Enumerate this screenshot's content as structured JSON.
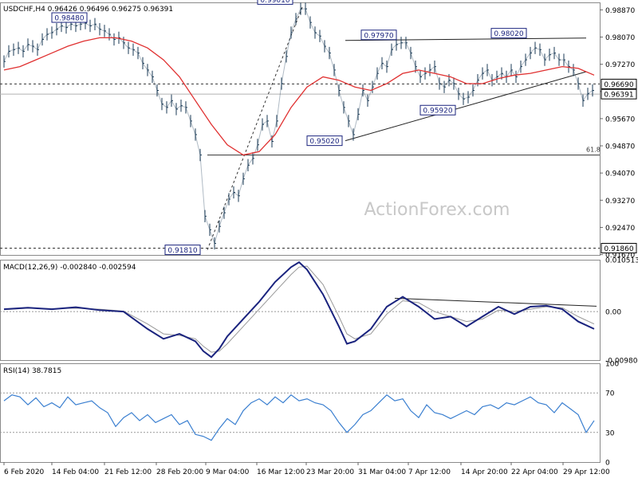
{
  "chart_data": {
    "type": "line",
    "symbol": "USDCHF,H4",
    "ohlc": {
      "open": "0.96426",
      "high": "0.96496",
      "low": "0.96275",
      "close": "0.96391"
    },
    "watermark": "ActionForex.com",
    "x_ticks": [
      "6 Feb 2020",
      "14 Feb 04:00",
      "21 Feb 12:00",
      "28 Feb 20:00",
      "9 Mar 04:00",
      "16 Mar 12:00",
      "23 Mar 20:00",
      "31 Mar 04:00",
      "7 Apr 12:00",
      "14 Apr 20:00",
      "22 Apr 04:00",
      "29 Apr 12:00"
    ],
    "price_panel": {
      "ylim": [
        0.9166,
        0.9909
      ],
      "y_ticks": [
        "0.98870",
        "0.98070",
        "0.97270",
        "0.96470",
        "0.95670",
        "0.94870",
        "0.94070",
        "0.93270",
        "0.92470",
        "0.91670"
      ],
      "current_price": "0.96391",
      "level_marker": "0.96690",
      "low_marker": "0.91860",
      "fib_label": "61.8",
      "fib_level": 0.946,
      "annotations": [
        {
          "label": "0.98480",
          "value": 0.9848
        },
        {
          "label": "0.99010",
          "value": 0.9901
        },
        {
          "label": "0.91810",
          "value": 0.9181
        },
        {
          "label": "0.95020",
          "value": 0.9502
        },
        {
          "label": "0.97970",
          "value": 0.9797
        },
        {
          "label": "0.95920",
          "value": 0.9592
        },
        {
          "label": "0.98020",
          "value": 0.9802
        }
      ],
      "series": [
        {
          "name": "close",
          "color": "#1a3a55",
          "x": [
            0,
            6,
            12,
            18,
            24,
            30,
            36,
            42,
            48,
            54,
            60,
            66,
            72,
            78,
            84,
            90,
            96,
            102,
            108,
            114,
            120,
            126,
            132,
            138,
            144,
            150,
            156,
            162,
            168,
            174,
            180,
            186,
            192,
            198,
            204,
            210,
            216,
            222,
            228,
            234,
            240,
            246,
            252,
            258,
            264,
            270,
            276,
            282,
            288,
            294,
            300,
            306,
            312,
            318,
            324,
            330,
            336,
            342,
            348,
            354,
            360,
            366,
            372,
            378,
            384,
            390,
            396,
            402,
            408,
            414,
            420,
            426,
            432,
            438,
            444,
            450,
            456,
            462,
            468,
            474,
            480,
            486,
            492,
            498,
            504,
            510,
            516,
            522,
            528,
            534,
            540,
            546,
            552,
            558,
            564,
            570,
            576,
            582,
            588,
            594,
            600,
            606,
            612,
            618,
            624,
            630,
            636,
            642,
            648,
            654,
            660,
            666,
            672,
            678,
            684,
            690,
            696,
            702,
            708,
            714,
            720,
            726,
            732,
            738
          ],
          "values": [
            0.9735,
            0.9765,
            0.977,
            0.9775,
            0.9765,
            0.9785,
            0.978,
            0.977,
            0.98,
            0.9815,
            0.982,
            0.983,
            0.984,
            0.9835,
            0.9845,
            0.984,
            0.9845,
            0.9848,
            0.984,
            0.9845,
            0.983,
            0.9825,
            0.9815,
            0.98,
            0.9805,
            0.979,
            0.9775,
            0.977,
            0.976,
            0.973,
            0.971,
            0.969,
            0.965,
            0.961,
            0.96,
            0.962,
            0.9595,
            0.9605,
            0.96,
            0.956,
            0.952,
            0.946,
            0.928,
            0.924,
            0.92,
            0.925,
            0.929,
            0.933,
            0.935,
            0.934,
            0.939,
            0.943,
            0.945,
            0.949,
            0.955,
            0.956,
            0.95,
            0.956,
            0.967,
            0.975,
            0.982,
            0.986,
            0.989,
            0.989,
            0.985,
            0.982,
            0.981,
            0.978,
            0.976,
            0.971,
            0.965,
            0.96,
            0.956,
            0.952,
            0.958,
            0.965,
            0.962,
            0.966,
            0.97,
            0.973,
            0.972,
            0.977,
            0.9785,
            0.979,
            0.979,
            0.976,
            0.972,
            0.969,
            0.97,
            0.971,
            0.972,
            0.967,
            0.966,
            0.968,
            0.967,
            0.964,
            0.9625,
            0.963,
            0.965,
            0.968,
            0.97,
            0.971,
            0.968,
            0.969,
            0.97,
            0.969,
            0.971,
            0.969,
            0.972,
            0.974,
            0.976,
            0.9775,
            0.977,
            0.974,
            0.9755,
            0.976,
            0.974,
            0.974,
            0.972,
            0.971,
            0.967,
            0.962,
            0.964,
            0.965
          ]
        },
        {
          "name": "MA",
          "color": "#e03030",
          "x": [
            0,
            20,
            40,
            60,
            80,
            100,
            120,
            140,
            160,
            180,
            200,
            220,
            240,
            260,
            280,
            300,
            320,
            340,
            360,
            380,
            400,
            420,
            440,
            460,
            480,
            500,
            520,
            540,
            560,
            580,
            600,
            620,
            640,
            660,
            680,
            700,
            720,
            740
          ],
          "values": [
            0.971,
            0.972,
            0.974,
            0.976,
            0.978,
            0.9795,
            0.9805,
            0.9805,
            0.9795,
            0.9775,
            0.974,
            0.969,
            0.962,
            0.955,
            0.949,
            0.946,
            0.947,
            0.952,
            0.96,
            0.966,
            0.969,
            0.968,
            0.966,
            0.965,
            0.967,
            0.97,
            0.971,
            0.97,
            0.969,
            0.967,
            0.967,
            0.9685,
            0.9695,
            0.97,
            0.971,
            0.972,
            0.9715,
            0.9695
          ]
        }
      ]
    },
    "macd_panel": {
      "label": "MACD(12,26,9) -0.002840 -0.002594",
      "ylim": [
        -0.0098,
        0.0105
      ],
      "y_ticks": [
        "0.010513",
        "0.00",
        "-0.009804"
      ],
      "zero_label": "0.00",
      "series": [
        {
          "name": "MACD",
          "color": "#1a237e",
          "x": [
            0,
            30,
            60,
            90,
            120,
            150,
            180,
            200,
            220,
            240,
            250,
            260,
            270,
            280,
            300,
            320,
            340,
            360,
            370,
            380,
            400,
            420,
            430,
            440,
            460,
            480,
            500,
            520,
            540,
            560,
            580,
            600,
            620,
            640,
            660,
            680,
            700,
            720,
            740
          ],
          "values": [
            0.0005,
            0.0008,
            0.0005,
            0.0009,
            0.0003,
            0.0,
            -0.0035,
            -0.0055,
            -0.0045,
            -0.006,
            -0.008,
            -0.0092,
            -0.0075,
            -0.005,
            -0.0015,
            0.002,
            0.006,
            0.009,
            0.01,
            0.0085,
            0.0035,
            -0.003,
            -0.0065,
            -0.006,
            -0.0035,
            0.001,
            0.003,
            0.001,
            -0.0015,
            -0.001,
            -0.003,
            -0.001,
            0.001,
            -0.0005,
            0.001,
            0.0012,
            0.0005,
            -0.002,
            -0.0035
          ]
        },
        {
          "name": "Signal",
          "color": "#999999",
          "x": [
            0,
            30,
            60,
            90,
            120,
            150,
            180,
            200,
            220,
            240,
            250,
            260,
            270,
            280,
            300,
            320,
            340,
            360,
            370,
            380,
            400,
            420,
            430,
            440,
            460,
            480,
            500,
            520,
            540,
            560,
            580,
            600,
            620,
            640,
            660,
            680,
            700,
            720,
            740
          ],
          "values": [
            0.0004,
            0.0007,
            0.0006,
            0.0007,
            0.0005,
            0.0001,
            -0.0025,
            -0.0045,
            -0.0048,
            -0.0055,
            -0.007,
            -0.0082,
            -0.008,
            -0.0065,
            -0.003,
            0.0005,
            0.004,
            0.0075,
            0.009,
            0.0092,
            0.0055,
            -0.001,
            -0.0045,
            -0.0055,
            -0.0045,
            -0.0005,
            0.0022,
            0.0018,
            0.0,
            -0.001,
            -0.002,
            -0.0015,
            0.0003,
            0.0,
            0.0005,
            0.001,
            0.0008,
            -0.001,
            -0.0025
          ]
        }
      ]
    },
    "rsi_panel": {
      "label": "RSI(14) 38.7815",
      "ylim": [
        0,
        100
      ],
      "y_ticks": [
        "100",
        "70",
        "30",
        "0"
      ],
      "series": [
        {
          "name": "RSI",
          "color": "#3a7fd0",
          "x": [
            0,
            10,
            20,
            30,
            40,
            50,
            60,
            70,
            80,
            90,
            100,
            110,
            120,
            130,
            140,
            150,
            160,
            170,
            180,
            190,
            200,
            210,
            220,
            230,
            240,
            250,
            260,
            270,
            280,
            290,
            300,
            310,
            320,
            330,
            340,
            350,
            360,
            370,
            380,
            390,
            400,
            410,
            420,
            430,
            440,
            450,
            460,
            470,
            480,
            490,
            500,
            510,
            520,
            530,
            540,
            550,
            560,
            570,
            580,
            590,
            600,
            610,
            620,
            630,
            640,
            650,
            660,
            670,
            680,
            690,
            700,
            710,
            720,
            730,
            740
          ],
          "values": [
            62,
            68,
            66,
            58,
            65,
            56,
            60,
            55,
            66,
            58,
            60,
            62,
            55,
            50,
            36,
            45,
            50,
            42,
            48,
            40,
            44,
            48,
            38,
            42,
            28,
            26,
            22,
            34,
            44,
            38,
            52,
            60,
            64,
            58,
            66,
            60,
            68,
            62,
            64,
            60,
            58,
            52,
            40,
            30,
            38,
            48,
            52,
            60,
            68,
            62,
            64,
            52,
            45,
            58,
            50,
            48,
            44,
            48,
            52,
            48,
            56,
            58,
            54,
            60,
            58,
            62,
            66,
            60,
            58,
            50,
            60,
            54,
            48,
            30,
            42
          ]
        }
      ],
      "levels": [
        70,
        30
      ]
    }
  }
}
